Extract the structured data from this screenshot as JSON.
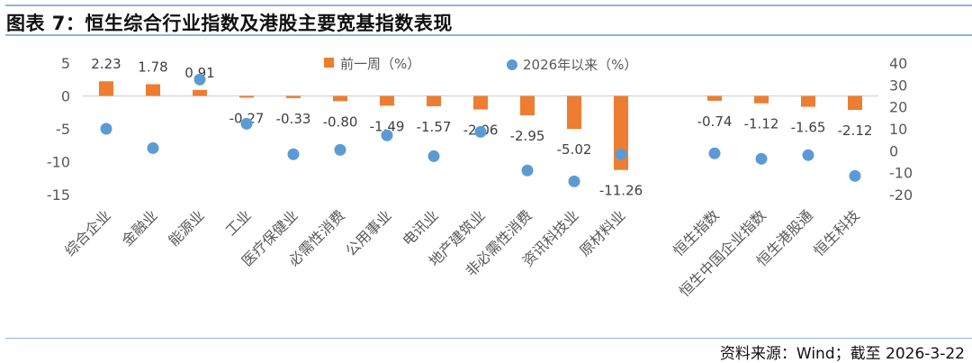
{
  "title": "图表 7：恒生综合行业指数及港股主要宽基指数表现",
  "source": "资料来源：Wind；截至 2026-3-22",
  "colors": {
    "bar": "#ED7D31",
    "dot": "#5B9BD5",
    "rule": "#8FB4DC",
    "axis_text": "#595959"
  },
  "chart_data": {
    "type": "bar+scatter",
    "title": "",
    "categories": [
      "综合企业",
      "金融业",
      "能源业",
      "工业",
      "医疗保健业",
      "必需性消费",
      "公用事业",
      "电讯业",
      "地产建筑业",
      "非必需性消费",
      "资讯科技业",
      "原材料业",
      "",
      "恒生指数",
      "恒生中国企业指数",
      "恒生港股通",
      "恒生科技"
    ],
    "series": [
      {
        "name": "前一周（%）",
        "type": "bar",
        "axis": "left",
        "values": [
          2.23,
          1.78,
          0.91,
          -0.27,
          -0.33,
          -0.8,
          -1.49,
          -1.57,
          -2.06,
          -2.95,
          -5.02,
          -11.26,
          null,
          -0.74,
          -1.12,
          -1.65,
          -2.12
        ],
        "labels": [
          "2.23",
          "1.78",
          "0.91",
          "-0.27",
          "-0.33",
          "-0.80",
          "-1.49",
          "-1.57",
          "-2.06",
          "-2.95",
          "-5.02",
          "-11.26",
          "",
          "-0.74",
          "-1.12",
          "-1.65",
          "-2.12"
        ]
      },
      {
        "name": "2026年以来（%）",
        "type": "scatter",
        "axis": "right",
        "values": [
          10,
          1.2,
          32.5,
          12.3,
          -1.6,
          0.4,
          7,
          -2.5,
          8.6,
          -9,
          -14,
          -1.6,
          null,
          -1.2,
          -3.7,
          -2,
          -11.5
        ]
      }
    ],
    "left_axis": {
      "ylim": [
        -15,
        5
      ],
      "ticks": [
        "5",
        "0",
        "-5",
        "-10",
        "-15"
      ],
      "tick_values": [
        5,
        0,
        -5,
        -10,
        -15
      ]
    },
    "right_axis": {
      "ylim": [
        -20,
        40
      ],
      "ticks": [
        "40",
        "30",
        "20",
        "10",
        "0",
        "-10",
        "-20"
      ],
      "tick_values": [
        40,
        30,
        20,
        10,
        0,
        -10,
        -20
      ]
    },
    "legend": {
      "placement": "top-center",
      "entries": [
        "前一周（%）",
        "2026年以来（%）"
      ]
    },
    "grid": false
  }
}
